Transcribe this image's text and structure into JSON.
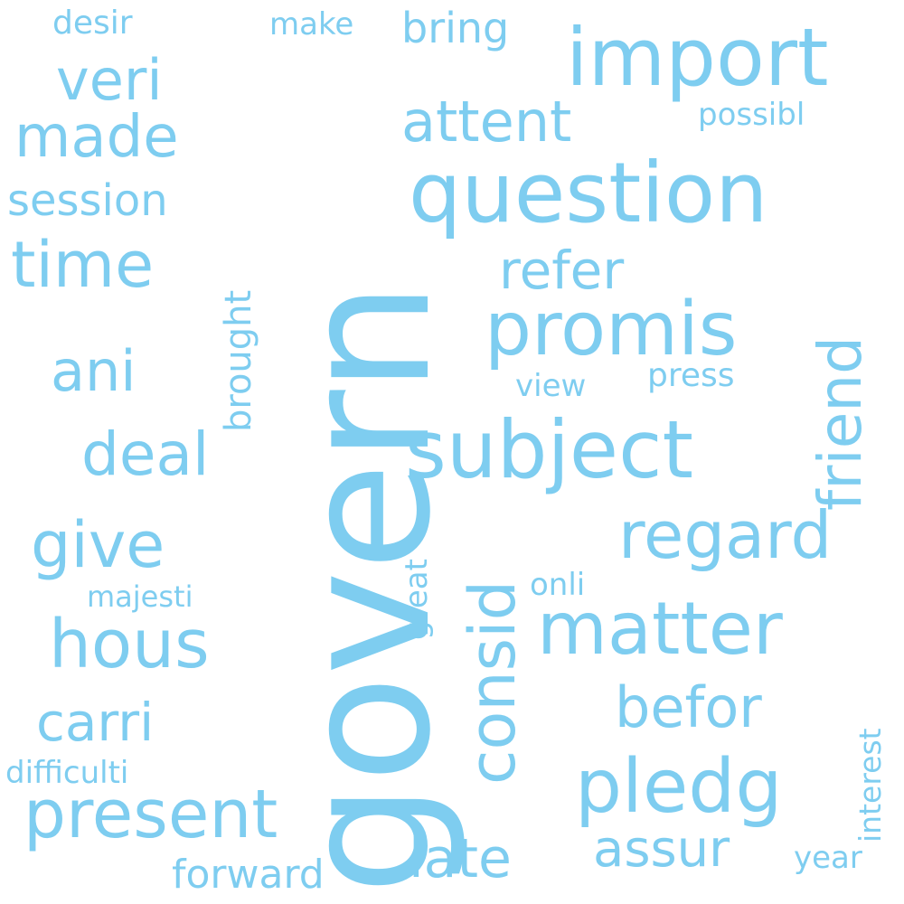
{
  "color": "#7ecdf0",
  "words": {
    "govern": "govern",
    "question": "question",
    "import": "import",
    "subject": "subject",
    "promis": "promis",
    "matter": "matter",
    "pledg": "pledg",
    "present": "present",
    "regard": "regard",
    "friend": "friend",
    "consid": "consid",
    "time": "time",
    "made": "made",
    "veri": "veri",
    "attent": "attent",
    "give": "give",
    "hous": "hous",
    "deal": "deal",
    "befor": "befor",
    "assur": "assur",
    "refer": "refer",
    "carri": "carri",
    "late": "late",
    "ani": "ani",
    "session": "session",
    "bring": "bring",
    "forward": "forward",
    "desir": "desir",
    "make": "make",
    "possibl": "possibl",
    "brought": "brought",
    "press": "press",
    "view": "view",
    "onli": "onli",
    "majesti": "majesti",
    "great": "great",
    "interest": "interest",
    "difficulti": "difficulti",
    "year": "year"
  }
}
